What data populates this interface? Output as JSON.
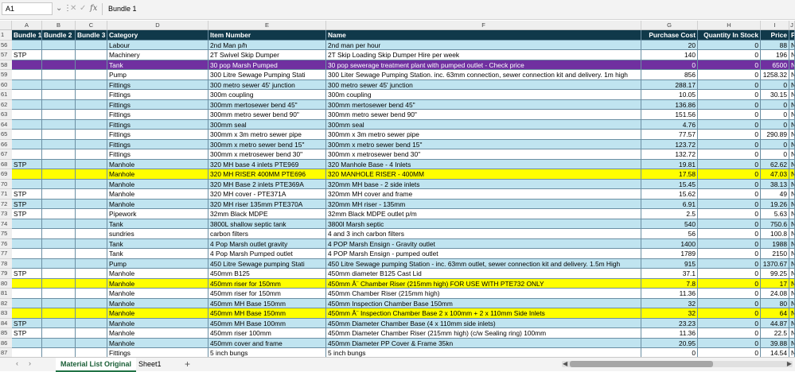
{
  "formula_bar": {
    "name_box": "A1",
    "formula": "Bundle 1",
    "fx": "fx",
    "cancel": "✕",
    "enter": "✓"
  },
  "column_letters": [
    "",
    "A",
    "B",
    "C",
    "D",
    "E",
    "F",
    "G",
    "H",
    "I",
    "J"
  ],
  "header_row": {
    "row": "1",
    "cells": [
      "Bundle 1",
      "Bundle 2",
      "Bundle 3",
      "Category",
      "Item Number",
      "Name",
      "Purchase Cost",
      "Quantity In Stock",
      "Price",
      "P"
    ]
  },
  "rows": [
    {
      "row": "56",
      "bg": "blue",
      "cells": [
        "",
        "",
        "",
        "Labour",
        "2nd Man p/h",
        "2nd man per hour",
        "20",
        "0",
        "88",
        "N"
      ]
    },
    {
      "row": "57",
      "bg": "white",
      "cells": [
        "STP",
        "",
        "",
        "Machinery",
        "2T Swivel Skip Dumper",
        "2T Skip Loading Skip Dumper Hire per week",
        "140",
        "0",
        "196",
        "N"
      ]
    },
    {
      "row": "58",
      "bg": "purple",
      "cells": [
        "",
        "",
        "",
        "Tank",
        "30 pop Marsh Pumped",
        "30 pop sewerage treatment plant with pumped outlet - Check price",
        "0",
        "0",
        "6500",
        "N"
      ]
    },
    {
      "row": "59",
      "bg": "white",
      "cells": [
        "",
        "",
        "",
        "Pump",
        "300 Litre Sewage Pumping Stati",
        "300 Liter Sewage Pumping Station. inc. 63mm connection, sewer connection kit and delivery. 1m high",
        "856",
        "0",
        "1258.32",
        "N"
      ]
    },
    {
      "row": "60",
      "bg": "blue",
      "cells": [
        "",
        "",
        "",
        "Fittings",
        "300 metro sewer 45' junction",
        "300 metro sewer 45' junction",
        "288.17",
        "0",
        "0",
        "N"
      ]
    },
    {
      "row": "61",
      "bg": "white",
      "cells": [
        "",
        "",
        "",
        "Fittings",
        "300m coupling",
        "300m coupling",
        "10.05",
        "0",
        "30.15",
        "N"
      ]
    },
    {
      "row": "62",
      "bg": "blue",
      "cells": [
        "",
        "",
        "",
        "Fittings",
        "300mm mertosewer bend 45\"",
        "300mm mertosewer bend 45\"",
        "136.86",
        "0",
        "0",
        "N"
      ]
    },
    {
      "row": "63",
      "bg": "white",
      "cells": [
        "",
        "",
        "",
        "Fittings",
        "300mm metro sewer bend 90\"",
        "300mm metro sewer bend 90\"",
        "151.56",
        "0",
        "0",
        "N"
      ]
    },
    {
      "row": "64",
      "bg": "blue",
      "cells": [
        "",
        "",
        "",
        "Fittings",
        "300mm seal",
        "300mm seal",
        "4.76",
        "0",
        "0",
        "N"
      ]
    },
    {
      "row": "65",
      "bg": "white",
      "cells": [
        "",
        "",
        "",
        "Fittings",
        "300mm x 3m metro sewer pipe",
        "300mm x 3m metro sewer pipe",
        "77.57",
        "0",
        "290.89",
        "N"
      ]
    },
    {
      "row": "66",
      "bg": "blue",
      "cells": [
        "",
        "",
        "",
        "Fittings",
        "300mm x metro sewer bend 15\"",
        "300mm x metro sewer bend 15\"",
        "123.72",
        "0",
        "0",
        "N"
      ]
    },
    {
      "row": "67",
      "bg": "white",
      "cells": [
        "",
        "",
        "",
        "Fittings",
        "300mm x metrosewer bend 30\"",
        "300mm x metrosewer bend 30\"",
        "132.72",
        "0",
        "0",
        "N"
      ]
    },
    {
      "row": "68",
      "bg": "blue",
      "cells": [
        "STP",
        "",
        "",
        "Manhole",
        "320 MH base 4 inlets PTE969",
        "320 Manhole Base - 4 Inlets",
        "19.81",
        "0",
        "62.62",
        "N"
      ]
    },
    {
      "row": "69",
      "bg": "yellow",
      "cells": [
        "",
        "",
        "",
        "Manhole",
        "320 MH RISER 400MM PTE696",
        "320 MANHOLE RISER - 400MM",
        "17.58",
        "0",
        "47.03",
        "N"
      ]
    },
    {
      "row": "70",
      "bg": "blue",
      "cells": [
        "",
        "",
        "",
        "Manhole",
        "320 MH Base 2 inlets PTE369A",
        "320mm MH base - 2 side inlets",
        "15.45",
        "0",
        "38.13",
        "N"
      ]
    },
    {
      "row": "71",
      "bg": "white",
      "cells": [
        "STP",
        "",
        "",
        "Manhole",
        "320 MH cover - PTE371A",
        "320mm MH cover and frame",
        "15.62",
        "0",
        "49",
        "N"
      ]
    },
    {
      "row": "72",
      "bg": "blue",
      "cells": [
        "STP",
        "",
        "",
        "Manhole",
        "320 MH riser 135mm  PTE370A",
        "320mm MH riser - 135mm",
        "6.91",
        "0",
        "19.26",
        "N"
      ]
    },
    {
      "row": "73",
      "bg": "white",
      "cells": [
        "STP",
        "",
        "",
        "Pipework",
        "32mm Black MDPE",
        "32mm Black MDPE outlet p/m",
        "2.5",
        "0",
        "5.63",
        "N"
      ]
    },
    {
      "row": "74",
      "bg": "blue",
      "cells": [
        "",
        "",
        "",
        "Tank",
        "3800L shallow septic tank",
        "3800l Marsh septic",
        "540",
        "0",
        "750.6",
        "N"
      ]
    },
    {
      "row": "75",
      "bg": "white",
      "cells": [
        "",
        "",
        "",
        "sundries",
        "carbon filters",
        "4 and 3 inch carbon filters",
        "56",
        "0",
        "100.8",
        "N"
      ]
    },
    {
      "row": "76",
      "bg": "blue",
      "cells": [
        "",
        "",
        "",
        "Tank",
        "4 Pop Marsh outlet gravity",
        "4 POP Marsh Ensign - Gravity outlet",
        "1400",
        "0",
        "1988",
        "N"
      ]
    },
    {
      "row": "77",
      "bg": "white",
      "cells": [
        "",
        "",
        "",
        "Tank",
        "4 Pop Marsh Pumped outlet",
        "4 POP Marsh Ensign - pumped outlet",
        "1789",
        "0",
        "2150",
        "N"
      ]
    },
    {
      "row": "78",
      "bg": "blue",
      "cells": [
        "",
        "",
        "",
        "Pump",
        "450 Litre Sewage pumping Stati",
        "450 Litre Sewage pumping Station - inc. 63mm outlet, sewer connection kit and delivery. 1.5m High",
        "915",
        "0",
        "1370.67",
        "N"
      ]
    },
    {
      "row": "79",
      "bg": "white",
      "cells": [
        "STP",
        "",
        "",
        "Manhole",
        "450mm B125",
        "450mm diameter B125 Cast Lid",
        "37.1",
        "0",
        "99.25",
        "N"
      ]
    },
    {
      "row": "80",
      "bg": "yellow",
      "cells": [
        "",
        "",
        "",
        "Manhole",
        "450mm riser for 150mm",
        "450mm Â¨ Chamber Riser (215mm high) FOR USE WITH PTE732 ONLY",
        "7.8",
        "0",
        "17",
        "N"
      ]
    },
    {
      "row": "81",
      "bg": "white",
      "cells": [
        "",
        "",
        "",
        "Manhole",
        "450mm riser for 150mm",
        "450mm Chamber Riser (215mm high)",
        "11.36",
        "0",
        "24.08",
        "N"
      ]
    },
    {
      "row": "82",
      "bg": "blue",
      "cells": [
        "",
        "",
        "",
        "Manhole",
        "450mm MH Base 150mm",
        "450mm  Inspection Chamber Base 150mm",
        "32",
        "0",
        "80",
        "N"
      ]
    },
    {
      "row": "83",
      "bg": "yellow",
      "cells": [
        "",
        "",
        "",
        "Manhole",
        "450mm MH Base 150mm",
        "450mm Â¨ Inspection Chamber Base 2 x 100mm + 2 x 110mm Side Inlets",
        "32",
        "0",
        "64",
        "N"
      ]
    },
    {
      "row": "84",
      "bg": "blue",
      "cells": [
        "STP",
        "",
        "",
        "Manhole",
        "450mm MH Base 100mm",
        "450mm Diameter Chamber Base (4 x 110mm side inlets)",
        "23.23",
        "0",
        "44.87",
        "N"
      ]
    },
    {
      "row": "85",
      "bg": "white",
      "cells": [
        "STP",
        "",
        "",
        "Manhole",
        "450mm riser 100mm",
        "450mm Diameter Chamber Riser (215mm high) (c/w Sealing ring) 100mm",
        "11.36",
        "0",
        "22.5",
        "N"
      ]
    },
    {
      "row": "86",
      "bg": "blue",
      "cells": [
        "",
        "",
        "",
        "Manhole",
        "450mm cover and frame",
        "450mm Diameter PP Cover & Frame 35kn",
        "20.95",
        "0",
        "39.88",
        "N"
      ]
    },
    {
      "row": "87",
      "bg": "white",
      "cells": [
        "",
        "",
        "",
        "Fittings",
        "5 inch bungs",
        "5 inch bungs",
        "0",
        "0",
        "14.54",
        "N"
      ]
    }
  ],
  "tabs": {
    "items": [
      "Material List Original",
      "Sheet1"
    ],
    "add": "+",
    "prev": "‹",
    "next": "›",
    "dots": "⋮",
    "scroll_left": "◀",
    "scroll_right": "▶"
  },
  "colors": {
    "header_bg": "#10394a",
    "blue_band": "#c0e4f0",
    "highlight_yellow": "#ffff00",
    "highlight_purple": "#7030a0"
  }
}
